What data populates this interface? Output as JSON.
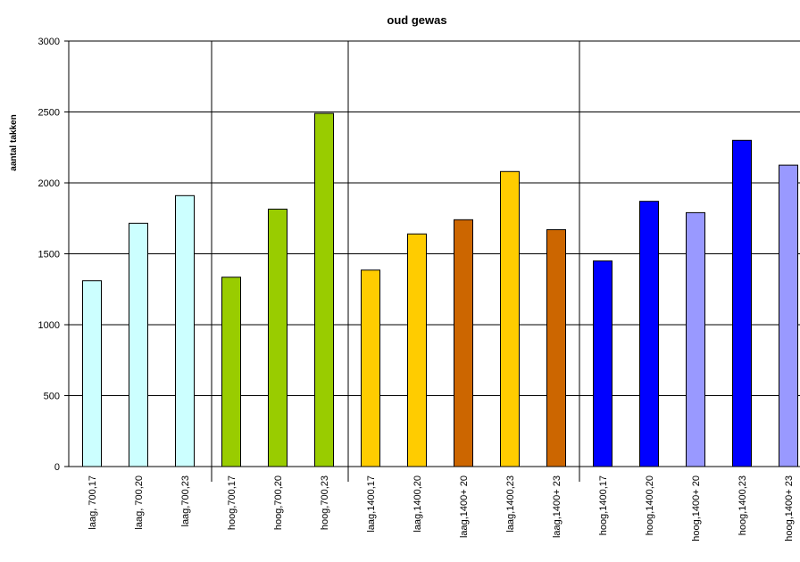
{
  "chart_data": {
    "type": "bar",
    "title": "oud gewas",
    "y_label": "aantal takken",
    "categories": [
      "laag, 700,17",
      "laag, 700,20",
      "laag,700,23",
      "hoog,700,17",
      "hoog,700,20",
      "hoog,700,23",
      "laag,1400,17",
      "laag,1400,20",
      "laag,1400+ 20",
      "laag,1400,23",
      "laag,1400+ 23",
      "hoog,1400,17",
      "hoog,1400,20",
      "hoog,1400+ 20",
      "hoog,1400,23",
      "hoog,1400+ 23"
    ],
    "values": [
      1310,
      1715,
      1910,
      1335,
      1815,
      2490,
      1385,
      1640,
      1740,
      2080,
      1670,
      1450,
      1870,
      1790,
      2300,
      2125
    ],
    "colors": [
      "#ccffff",
      "#ccffff",
      "#ccffff",
      "#99cc00",
      "#99cc00",
      "#99cc00",
      "#ffcc00",
      "#ffcc00",
      "#cc6600",
      "#ffcc00",
      "#cc6600",
      "#0000ff",
      "#0000ff",
      "#9999ff",
      "#0000ff",
      "#9999ff"
    ],
    "ylim": [
      0,
      3000
    ],
    "yticks": [
      0,
      500,
      1000,
      1500,
      2000,
      2500,
      3000
    ],
    "grid": true
  }
}
